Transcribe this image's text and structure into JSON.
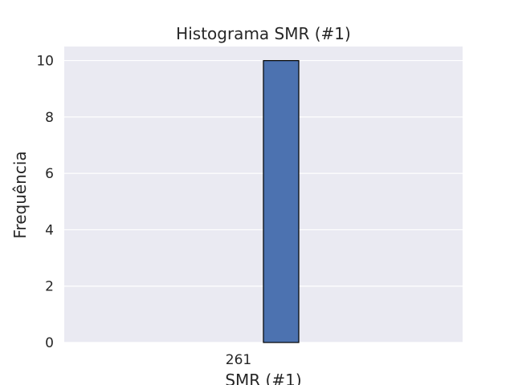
{
  "chart_data": {
    "type": "bar",
    "title": "Histograma SMR (#1)",
    "xlabel": "SMR (#1)",
    "ylabel": "Frequência",
    "categories": [
      "261"
    ],
    "values": [
      10
    ],
    "ylim": [
      0,
      10.5
    ],
    "yticks": [
      0,
      2,
      4,
      6,
      8,
      10
    ],
    "grid": true,
    "legend": "none"
  },
  "colors": {
    "plot_background": "#eaeaf2",
    "bar_fill": "#4c72b0",
    "bar_edge": "#000000",
    "grid": "#ffffff",
    "text": "#262626"
  }
}
